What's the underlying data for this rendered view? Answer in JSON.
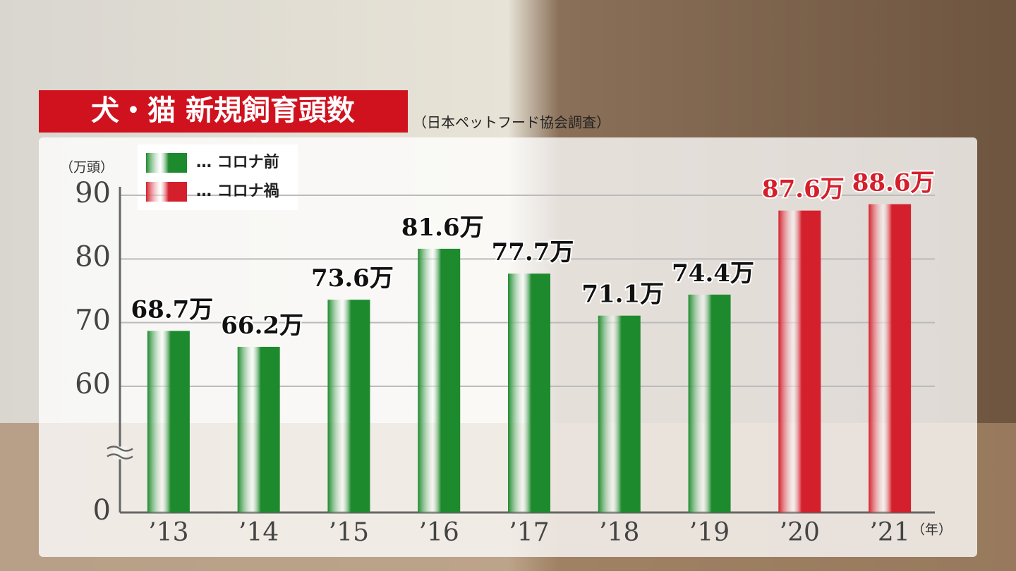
{
  "chart_data": {
    "type": "bar",
    "title": "犬・猫 新規飼育頭数",
    "subtitle": "（日本ペットフード協会調査）",
    "y_label": "（万頭）",
    "x_label": "（年）",
    "categories": [
      "’13",
      "’14",
      "’15",
      "’16",
      "’17",
      "’18",
      "’19",
      "’20",
      "’21"
    ],
    "series": [
      {
        "name": "… コロナ前",
        "color": "#1e8a2e",
        "values": [
          68.7,
          66.2,
          73.6,
          81.6,
          77.7,
          71.1,
          74.4,
          null,
          null
        ],
        "value_labels": [
          "68.7万",
          "66.2万",
          "73.6万",
          "81.6万",
          "77.7万",
          "71.1万",
          "74.4万",
          null,
          null
        ]
      },
      {
        "name": "… コロナ禍",
        "color": "#d4202c",
        "values": [
          null,
          null,
          null,
          null,
          null,
          null,
          null,
          87.6,
          88.6
        ],
        "value_labels": [
          null,
          null,
          null,
          null,
          null,
          null,
          null,
          "87.6万",
          "88.6万"
        ]
      }
    ],
    "ylim": [
      0,
      90
    ],
    "yticks": [
      0,
      60,
      70,
      80,
      90
    ],
    "axis_break": true,
    "grid": true
  }
}
